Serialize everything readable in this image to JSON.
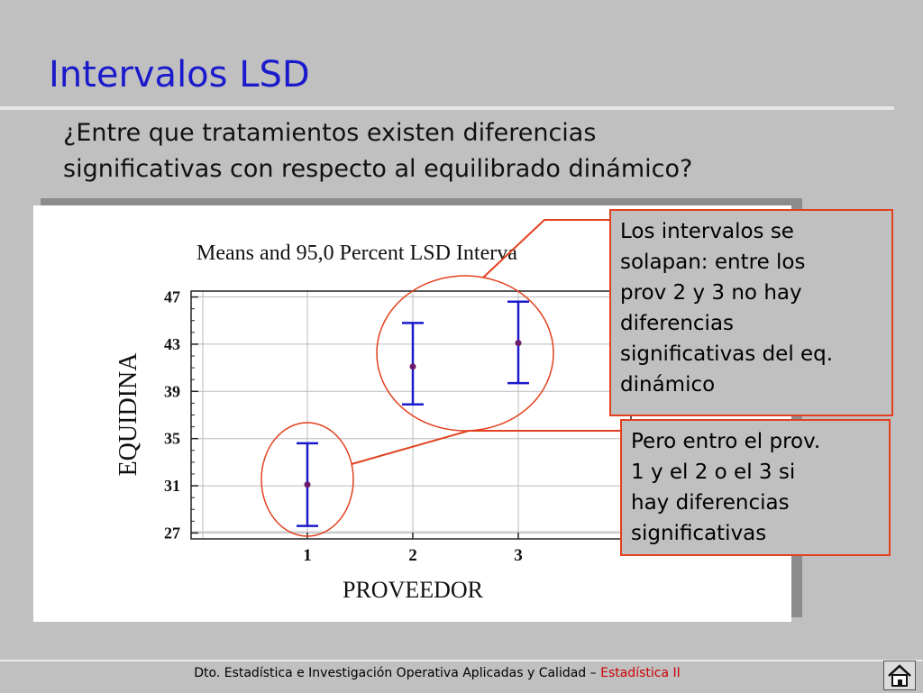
{
  "slide": {
    "title": "Intervalos LSD",
    "subtitle_lines": [
      "¿Entre que tratamientos existen diferencias",
      "significativas con respecto al equilibrado dinámico?"
    ]
  },
  "chart_data": {
    "type": "scatter",
    "title": "Means and 95,0 Percent LSD Interva",
    "xlabel": "PROVEEDOR",
    "ylabel": "EQUIDINA",
    "x_ticks": [
      "1",
      "2",
      "3"
    ],
    "y_ticks": [
      "27",
      "31",
      "35",
      "39",
      "43",
      "47"
    ],
    "ylim": [
      26.5,
      47.5
    ],
    "grid": true,
    "series": [
      {
        "points": [
          {
            "x": 1,
            "mean": 31.1,
            "lower": 27.6,
            "upper": 34.6
          },
          {
            "x": 2,
            "mean": 41.1,
            "lower": 37.9,
            "upper": 44.8
          },
          {
            "x": 3,
            "mean": 43.1,
            "lower": 39.7,
            "upper": 46.6
          }
        ]
      }
    ],
    "colors": {
      "interval": "#1a1acc",
      "mean_dot": "#6a1a6a",
      "grid": "#bbbbbb",
      "highlight": "#e2401e"
    }
  },
  "callouts": [
    {
      "lines": [
        "Los intervalos se",
        "solapan: entre los",
        "prov 2 y 3 no hay",
        "diferencias",
        "significativas del eq.",
        "dinámico"
      ]
    },
    {
      "lines": [
        "Pero entro el prov.",
        "1 y el 2 o el 3 si",
        "hay diferencias",
        "significativas"
      ]
    }
  ],
  "footer": {
    "text": "Dto. Estadística e Investigación Operativa Aplicadas y Calidad – ",
    "accent": "Estadística II"
  }
}
